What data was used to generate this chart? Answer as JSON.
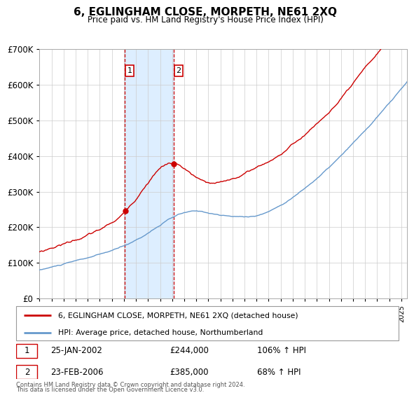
{
  "title": "6, EGLINGHAM CLOSE, MORPETH, NE61 2XQ",
  "subtitle": "Price paid vs. HM Land Registry's House Price Index (HPI)",
  "legend_line1": "6, EGLINGHAM CLOSE, MORPETH, NE61 2XQ (detached house)",
  "legend_line2": "HPI: Average price, detached house, Northumberland",
  "transaction1_date": "25-JAN-2002",
  "transaction1_price": "£244,000",
  "transaction1_hpi": "106% ↑ HPI",
  "transaction1_year": 2002.07,
  "transaction1_value": 244000,
  "transaction2_date": "23-FEB-2006",
  "transaction2_price": "£385,000",
  "transaction2_hpi": "68% ↑ HPI",
  "transaction2_year": 2006.13,
  "transaction2_value": 385000,
  "footer_line1": "Contains HM Land Registry data © Crown copyright and database right 2024.",
  "footer_line2": "This data is licensed under the Open Government Licence v3.0.",
  "red_color": "#cc0000",
  "blue_color": "#6699cc",
  "highlight_bg": "#ddeeff",
  "ylim_max": 700000,
  "ylim_min": 0
}
